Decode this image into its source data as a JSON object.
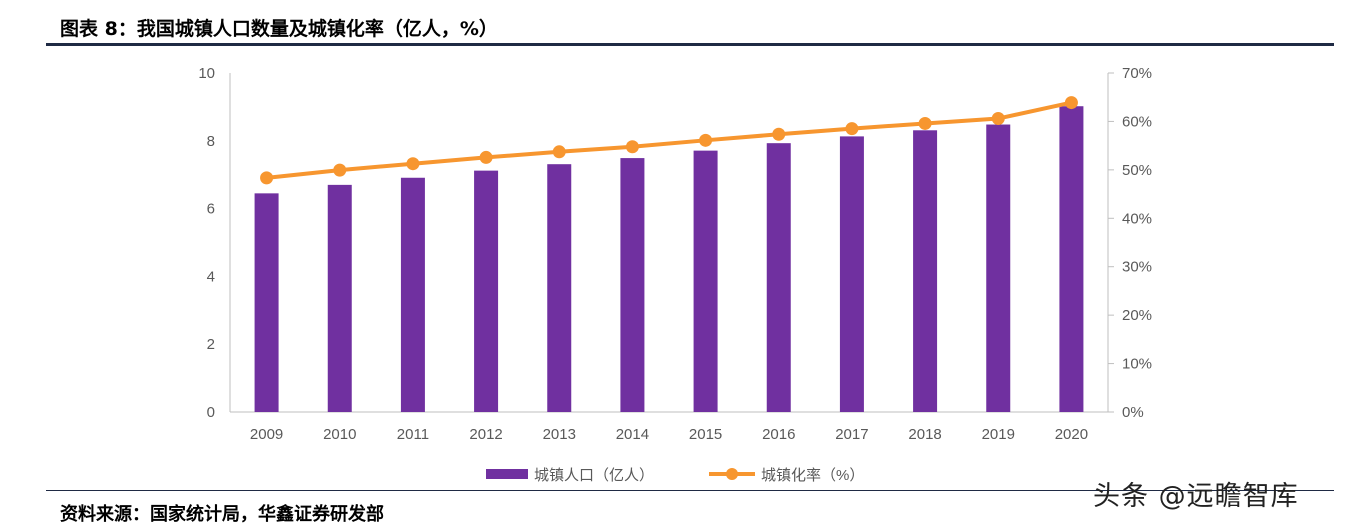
{
  "title": "图表 8：我国城镇人口数量及城镇化率（亿人，%）",
  "source": "资料来源：国家统计局，华鑫证券研发部",
  "watermark": "头条 @远瞻智库",
  "chart_data": {
    "type": "bar+line",
    "categories": [
      "2009",
      "2010",
      "2011",
      "2012",
      "2013",
      "2014",
      "2015",
      "2016",
      "2017",
      "2018",
      "2019",
      "2020"
    ],
    "series": [
      {
        "name": "城镇人口（亿人）",
        "type": "bar",
        "axis": "left",
        "color": "#7030a0",
        "values": [
          6.45,
          6.7,
          6.91,
          7.12,
          7.31,
          7.49,
          7.71,
          7.93,
          8.13,
          8.31,
          8.48,
          9.02
        ]
      },
      {
        "name": "城镇化率（%）",
        "type": "line",
        "axis": "right",
        "color": "#f7962f",
        "values": [
          48.34,
          49.95,
          51.27,
          52.57,
          53.73,
          54.77,
          56.1,
          57.35,
          58.52,
          59.58,
          60.6,
          63.89
        ]
      }
    ],
    "left_axis": {
      "ylim": [
        0,
        10
      ],
      "ticks": [
        "0",
        "2",
        "4",
        "6",
        "8",
        "10"
      ]
    },
    "right_axis": {
      "ylim": [
        0,
        70
      ],
      "ticks": [
        "0%",
        "10%",
        "20%",
        "30%",
        "40%",
        "50%",
        "60%",
        "70%"
      ]
    },
    "legend": "bottom",
    "grid": false
  }
}
